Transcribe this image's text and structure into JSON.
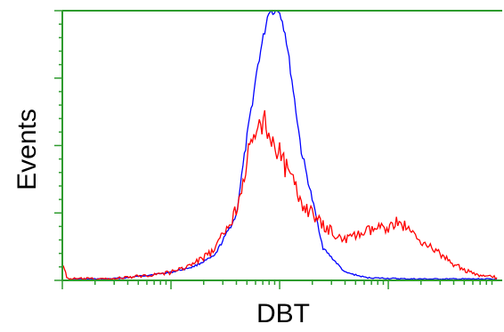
{
  "chart_data": {
    "type": "line",
    "title": "",
    "xlabel": "DBT",
    "ylabel": "Events",
    "xscale": "log",
    "xlim": [
      0,
      4
    ],
    "ylim": [
      0,
      100
    ],
    "grid": false,
    "legend": "none",
    "series": [
      {
        "color": "#0000ff",
        "x": [
          0.1,
          0.4,
          0.6,
          0.8,
          1.0,
          1.2,
          1.4,
          1.6,
          1.7,
          1.8,
          1.9,
          2.0,
          2.05,
          2.1,
          2.2,
          2.4,
          2.6,
          2.8,
          3.2,
          3.6,
          4.0
        ],
        "y": [
          0.5,
          0.5,
          1.0,
          2.0,
          3.0,
          5.0,
          9.0,
          24.0,
          53.0,
          80.0,
          100.0,
          100.0,
          92.0,
          78.0,
          48.0,
          12.0,
          3.0,
          1.0,
          0.5,
          0.5,
          0.5
        ]
      },
      {
        "color": "#ff0000",
        "x": [
          0.0,
          0.02,
          0.04,
          0.1,
          0.4,
          0.6,
          0.8,
          1.0,
          1.2,
          1.4,
          1.6,
          1.7,
          1.8,
          1.85,
          1.9,
          2.0,
          2.1,
          2.2,
          2.4,
          2.6,
          2.8,
          3.0,
          3.1,
          3.2,
          3.4,
          3.6,
          3.8,
          4.0
        ],
        "y": [
          6.0,
          4.0,
          1.0,
          0.5,
          0.5,
          1.0,
          2.0,
          3.0,
          6.0,
          11.0,
          26.0,
          45.0,
          55.0,
          60.0,
          55.0,
          47.0,
          38.0,
          29.0,
          20.0,
          15.0,
          18.0,
          20.0,
          22.0,
          18.0,
          12.0,
          6.0,
          2.0,
          1.0
        ]
      }
    ]
  }
}
